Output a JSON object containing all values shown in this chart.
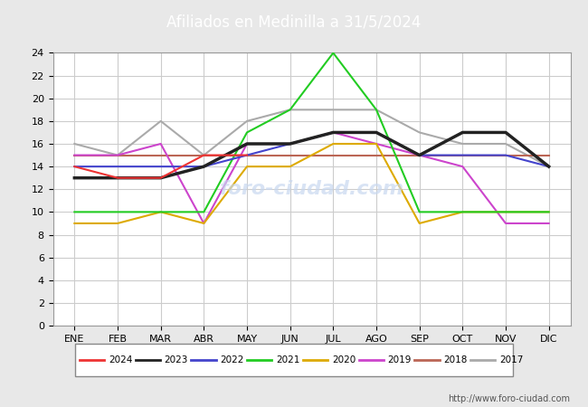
{
  "title": "Afiliados en Medinilla a 31/5/2024",
  "title_bg": "#4a7fc1",
  "months": [
    "ENE",
    "FEB",
    "MAR",
    "ABR",
    "MAY",
    "JUN",
    "JUL",
    "AGO",
    "SEP",
    "OCT",
    "NOV",
    "DIC"
  ],
  "series": {
    "2024": {
      "data": [
        14,
        13,
        13,
        15,
        15,
        null,
        null,
        null,
        null,
        null,
        null,
        null
      ],
      "color": "#ee3333",
      "lw": 1.5
    },
    "2023": {
      "data": [
        13,
        13,
        13,
        14,
        16,
        16,
        17,
        17,
        15,
        17,
        17,
        14
      ],
      "color": "#222222",
      "lw": 2.5
    },
    "2022": {
      "data": [
        14,
        14,
        14,
        14,
        15,
        16,
        17,
        17,
        15,
        15,
        15,
        14
      ],
      "color": "#4444cc",
      "lw": 1.5
    },
    "2021": {
      "data": [
        10,
        10,
        10,
        10,
        17,
        19,
        24,
        19,
        10,
        10,
        10,
        10
      ],
      "color": "#22cc22",
      "lw": 1.5
    },
    "2020": {
      "data": [
        9,
        9,
        10,
        9,
        14,
        14,
        16,
        16,
        9,
        10,
        10,
        10
      ],
      "color": "#ddaa00",
      "lw": 1.5
    },
    "2019": {
      "data": [
        15,
        15,
        16,
        9,
        16,
        16,
        17,
        16,
        15,
        14,
        9,
        9
      ],
      "color": "#cc44cc",
      "lw": 1.5
    },
    "2018": {
      "data": [
        15,
        15,
        15,
        15,
        15,
        15,
        15,
        15,
        15,
        15,
        15,
        15
      ],
      "color": "#bb6655",
      "lw": 1.5
    },
    "2017": {
      "data": [
        16,
        15,
        18,
        15,
        18,
        19,
        19,
        19,
        17,
        16,
        16,
        14
      ],
      "color": "#aaaaaa",
      "lw": 1.5
    }
  },
  "ylim": [
    0,
    24
  ],
  "yticks": [
    0,
    2,
    4,
    6,
    8,
    10,
    12,
    14,
    16,
    18,
    20,
    22,
    24
  ],
  "footer_url": "http://www.foro-ciudad.com",
  "bg_color": "#e8e8e8",
  "plot_bg": "#ffffff",
  "grid_color": "#cccccc",
  "watermark_text": "foro-ciudad.com",
  "watermark_color": "#c8d8f0"
}
